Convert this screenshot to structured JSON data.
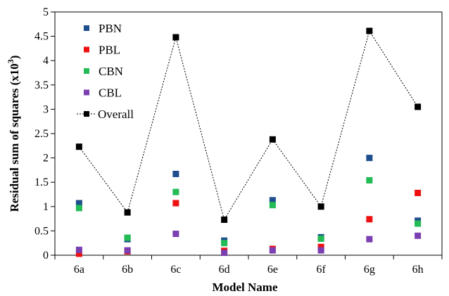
{
  "chart_data": {
    "type": "scatter",
    "xlabel": "Model Name",
    "ylabel": "Residual sum of squares (x10",
    "ylabel_sup": "3",
    "ylabel_close": ")",
    "categories": [
      "6a",
      "6b",
      "6c",
      "6d",
      "6e",
      "6f",
      "6g",
      "6h"
    ],
    "ylim": [
      0,
      5
    ],
    "yticks": [
      "0",
      "0.5",
      "1",
      "1.5",
      "2",
      "2.5",
      "3",
      "3.5",
      "4",
      "4.5",
      "5"
    ],
    "legend_position": "top-left",
    "grid": false,
    "series": [
      {
        "name": "PBN",
        "color": "#1f4e8c",
        "marker": "square",
        "line": false,
        "values": [
          1.07,
          0.33,
          1.67,
          0.3,
          1.13,
          0.37,
          2.0,
          0.71
        ]
      },
      {
        "name": "PBL",
        "color": "#ee1111",
        "marker": "square",
        "line": false,
        "values": [
          0.03,
          0.08,
          1.07,
          0.09,
          0.13,
          0.17,
          0.74,
          1.28
        ]
      },
      {
        "name": "CBN",
        "color": "#22bb55",
        "marker": "square",
        "line": false,
        "values": [
          0.97,
          0.36,
          1.3,
          0.25,
          1.03,
          0.34,
          1.54,
          0.65
        ]
      },
      {
        "name": "CBL",
        "color": "#7a3fb0",
        "marker": "square",
        "line": false,
        "values": [
          0.11,
          0.1,
          0.44,
          0.05,
          0.1,
          0.1,
          0.33,
          0.4
        ]
      },
      {
        "name": "Overall",
        "color": "#000000",
        "marker": "square",
        "line": true,
        "values": [
          2.23,
          0.88,
          4.48,
          0.73,
          2.38,
          1.0,
          4.61,
          3.05
        ]
      }
    ]
  }
}
